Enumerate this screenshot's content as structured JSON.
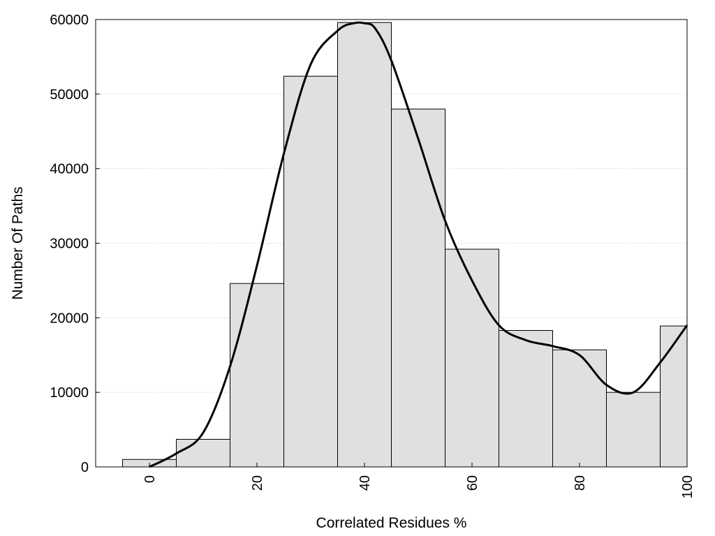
{
  "chart_data": {
    "type": "bar",
    "title": "",
    "xlabel": "Correlated Residues %",
    "ylabel": "Number Of Paths",
    "xlim": [
      -10,
      100
    ],
    "ylim": [
      0,
      60000
    ],
    "x_ticks": [
      0,
      20,
      40,
      60,
      80,
      100
    ],
    "y_ticks": [
      0,
      10000,
      20000,
      30000,
      40000,
      50000,
      60000
    ],
    "grid": "horizontal dotted",
    "legend": "none",
    "bins": [
      {
        "from": -5,
        "to": 5,
        "value": 1000
      },
      {
        "from": 5,
        "to": 15,
        "value": 3700
      },
      {
        "from": 15,
        "to": 25,
        "value": 24600
      },
      {
        "from": 25,
        "to": 35,
        "value": 52400
      },
      {
        "from": 35,
        "to": 45,
        "value": 59600
      },
      {
        "from": 45,
        "to": 55,
        "value": 48000
      },
      {
        "from": 55,
        "to": 65,
        "value": 29200
      },
      {
        "from": 65,
        "to": 75,
        "value": 18300
      },
      {
        "from": 75,
        "to": 85,
        "value": 15700
      },
      {
        "from": 85,
        "to": 95,
        "value": 10000
      },
      {
        "from": 95,
        "to": 100,
        "value": 18900
      }
    ],
    "curve": {
      "x": [
        0,
        5,
        10,
        15,
        20,
        25,
        30,
        35,
        38,
        40,
        42,
        45,
        50,
        55,
        60,
        65,
        70,
        75,
        80,
        85,
        90,
        95,
        100
      ],
      "y": [
        0,
        1800,
        4600,
        13500,
        27000,
        42000,
        54000,
        58500,
        59500,
        59500,
        58800,
        54500,
        44000,
        33000,
        25000,
        19000,
        17000,
        16200,
        15000,
        11000,
        10000,
        14000,
        19000
      ]
    },
    "colors": {
      "bar_fill": "#e0e0e0",
      "bar_stroke": "#000000",
      "curve": "#000000",
      "grid": "#bbbbbb"
    }
  }
}
